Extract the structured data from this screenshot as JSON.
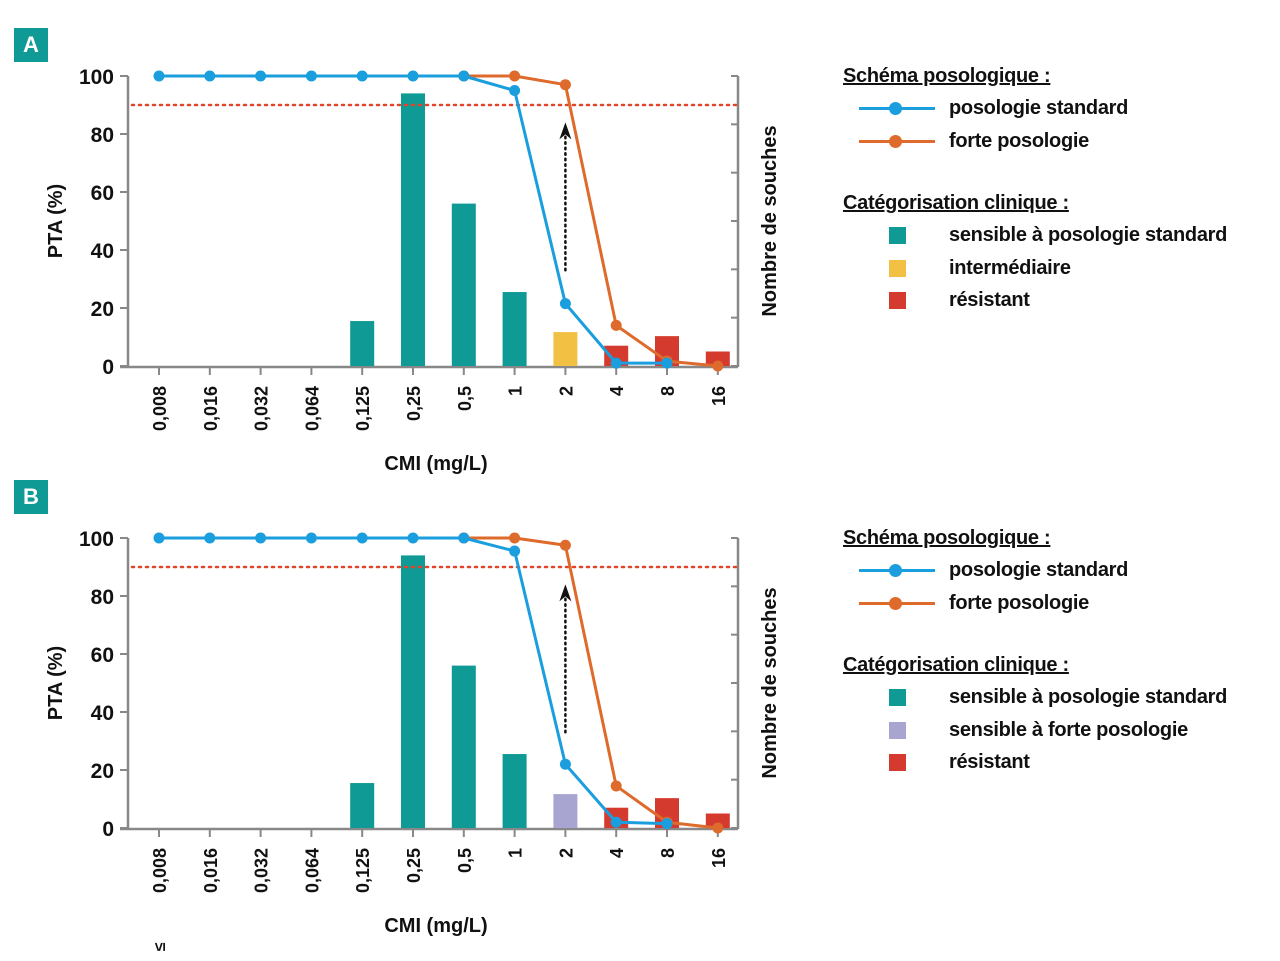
{
  "colors": {
    "standard": "#1a9ede",
    "high": "#de6a2c",
    "susceptible_standard": "#0f9a96",
    "intermediate": "#f2c144",
    "susceptible_high": "#a8a6d0",
    "resistant": "#d53a2f",
    "threshold": "#e0452b",
    "axis": "#888888",
    "badge": "#0f9a96"
  },
  "chart_data": [
    {
      "panel": "A",
      "type": "bar",
      "title": "",
      "xlabel": "CMI (mg/L)",
      "ylabel": "PTA (%)",
      "y2label": "Nombre de souches",
      "ylim": [
        0,
        100
      ],
      "yticks": [
        "0",
        "20",
        "40",
        "60",
        "80",
        "100"
      ],
      "categories": [
        "≤ 0,008",
        "0,016",
        "0,032",
        "0,064",
        "0,125",
        "0,25",
        "0,5",
        "1",
        "2",
        "4",
        "8",
        "16"
      ],
      "threshold": 90,
      "bars": {
        "values": [
          0,
          0,
          0,
          0,
          15.5,
          94,
          56,
          25.5,
          11.7,
          7,
          10.3,
          5
        ],
        "category_class": [
          null,
          null,
          null,
          null,
          "susceptible_standard",
          "susceptible_standard",
          "susceptible_standard",
          "susceptible_standard",
          "intermediate",
          "resistant",
          "resistant",
          "resistant"
        ]
      },
      "series": [
        {
          "name": "posologie standard",
          "color_key": "standard",
          "values": [
            100,
            100,
            100,
            100,
            100,
            100,
            100,
            95,
            21.5,
            1,
            1,
            null
          ]
        },
        {
          "name": "forte posologie",
          "color_key": "high",
          "values": [
            null,
            null,
            null,
            null,
            null,
            null,
            100,
            100,
            97,
            14,
            1.7,
            0
          ]
        }
      ],
      "annotation": {
        "type": "dotted-arrow",
        "category": "2",
        "from": 33,
        "to": 84
      }
    },
    {
      "panel": "B",
      "type": "bar",
      "title": "",
      "xlabel": "CMI (mg/L)",
      "ylabel": "PTA (%)",
      "y2label": "Nombre de souches",
      "ylim": [
        0,
        100
      ],
      "yticks": [
        "0",
        "20",
        "40",
        "60",
        "80",
        "100"
      ],
      "categories": [
        "≤ 0,008",
        "0,016",
        "0,032",
        "0,064",
        "0,125",
        "0,25",
        "0,5",
        "1",
        "2",
        "4",
        "8",
        "16"
      ],
      "threshold": 90,
      "bars": {
        "values": [
          0,
          0,
          0,
          0,
          15.5,
          94,
          56,
          25.5,
          11.7,
          7,
          10.3,
          5
        ],
        "category_class": [
          null,
          null,
          null,
          null,
          "susceptible_standard",
          "susceptible_standard",
          "susceptible_standard",
          "susceptible_standard",
          "susceptible_high",
          "resistant",
          "resistant",
          "resistant"
        ]
      },
      "series": [
        {
          "name": "posologie standard",
          "color_key": "standard",
          "values": [
            100,
            100,
            100,
            100,
            100,
            100,
            100,
            95.5,
            22,
            2,
            1.5,
            null
          ]
        },
        {
          "name": "forte posologie",
          "color_key": "high",
          "values": [
            null,
            null,
            null,
            null,
            null,
            null,
            100,
            100,
            97.5,
            14.5,
            2,
            0
          ]
        }
      ],
      "annotation": {
        "type": "dotted-arrow",
        "category": "2",
        "from": 33,
        "to": 84
      }
    }
  ],
  "legends": [
    {
      "panel": "A",
      "dosing_header": "Schéma posologique :",
      "dosing": [
        {
          "label": "posologie standard",
          "color_key": "standard"
        },
        {
          "label": "forte posologie",
          "color_key": "high"
        }
      ],
      "category_header": "Catégorisation clinique :",
      "categories": [
        {
          "label": "sensible à posologie standard",
          "color_key": "susceptible_standard"
        },
        {
          "label": "intermédiaire",
          "color_key": "intermediate"
        },
        {
          "label": "résistant",
          "color_key": "resistant"
        }
      ]
    },
    {
      "panel": "B",
      "dosing_header": "Schéma posologique :",
      "dosing": [
        {
          "label": "posologie standard",
          "color_key": "standard"
        },
        {
          "label": "forte posologie",
          "color_key": "high"
        }
      ],
      "category_header": "Catégorisation clinique :",
      "categories": [
        {
          "label": "sensible à posologie standard",
          "color_key": "susceptible_standard"
        },
        {
          "label": "sensible à forte posologie",
          "color_key": "susceptible_high"
        },
        {
          "label": "résistant",
          "color_key": "resistant"
        }
      ]
    }
  ]
}
